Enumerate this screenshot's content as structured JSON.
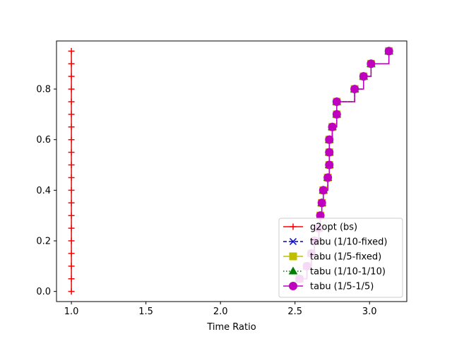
{
  "chart_data": {
    "type": "line",
    "title": "",
    "xlabel": "Time Ratio",
    "ylabel": "",
    "xlim": [
      0.9,
      3.25
    ],
    "ylim": [
      -0.04,
      0.99
    ],
    "xticks": [
      "1.0",
      "1.5",
      "2.0",
      "2.5",
      "3.0"
    ],
    "yticks": [
      "0.0",
      "0.2",
      "0.4",
      "0.6",
      "0.8"
    ],
    "grid": false,
    "legend_position": "lower-right",
    "step": true,
    "series": [
      {
        "name": "g2opt (bs)",
        "color": "#ff0000",
        "marker": "plus",
        "linestyle": "solid",
        "x": [
          1.0,
          1.0,
          1.0,
          1.0,
          1.0,
          1.0,
          1.0,
          1.0,
          1.0,
          1.0,
          1.0,
          1.0,
          1.0,
          1.0,
          1.0,
          1.0,
          1.0,
          1.0,
          1.0,
          1.0
        ],
        "y": [
          0.0,
          0.05,
          0.1,
          0.15,
          0.2,
          0.25,
          0.3,
          0.35,
          0.4,
          0.45,
          0.5,
          0.55,
          0.6,
          0.65,
          0.7,
          0.75,
          0.8,
          0.85,
          0.9,
          0.95
        ]
      },
      {
        "name": "tabu (1/10-fixed)",
        "color": "#0000cc",
        "marker": "x",
        "linestyle": "dashed",
        "x": [
          2.53,
          2.58,
          2.61,
          2.63,
          2.66,
          2.67,
          2.68,
          2.69,
          2.72,
          2.73,
          2.73,
          2.73,
          2.75,
          2.78,
          2.78,
          2.9,
          2.96,
          3.01,
          3.13
        ],
        "y": [
          0.05,
          0.1,
          0.15,
          0.2,
          0.25,
          0.3,
          0.35,
          0.4,
          0.45,
          0.5,
          0.55,
          0.6,
          0.65,
          0.7,
          0.75,
          0.8,
          0.85,
          0.9,
          0.95
        ]
      },
      {
        "name": "tabu (1/5-fixed)",
        "color": "#bfbf00",
        "marker": "square",
        "linestyle": "solid",
        "x": [
          2.53,
          2.58,
          2.61,
          2.63,
          2.66,
          2.67,
          2.68,
          2.69,
          2.72,
          2.73,
          2.73,
          2.73,
          2.75,
          2.78,
          2.78,
          2.9,
          2.96,
          3.01,
          3.13
        ],
        "y": [
          0.05,
          0.1,
          0.15,
          0.2,
          0.25,
          0.3,
          0.35,
          0.4,
          0.45,
          0.5,
          0.55,
          0.6,
          0.65,
          0.7,
          0.75,
          0.8,
          0.85,
          0.9,
          0.95
        ]
      },
      {
        "name": "tabu (1/10-1/10)",
        "color": "#008000",
        "marker": "triangle",
        "linestyle": "dotted",
        "x": [
          2.53,
          2.58,
          2.61,
          2.63,
          2.66,
          2.67,
          2.68,
          2.69,
          2.72,
          2.73,
          2.73,
          2.73,
          2.75,
          2.78,
          2.78,
          2.9,
          2.96,
          3.01,
          3.13
        ],
        "y": [
          0.05,
          0.1,
          0.15,
          0.2,
          0.25,
          0.3,
          0.35,
          0.4,
          0.45,
          0.5,
          0.55,
          0.6,
          0.65,
          0.7,
          0.75,
          0.8,
          0.85,
          0.9,
          0.95
        ]
      },
      {
        "name": "tabu (1/5-1/5)",
        "color": "#bf00bf",
        "marker": "circle",
        "linestyle": "solid",
        "x": [
          2.53,
          2.58,
          2.61,
          2.63,
          2.66,
          2.67,
          2.68,
          2.69,
          2.72,
          2.73,
          2.73,
          2.73,
          2.75,
          2.78,
          2.78,
          2.9,
          2.96,
          3.01,
          3.13
        ],
        "y": [
          0.05,
          0.1,
          0.15,
          0.2,
          0.25,
          0.3,
          0.35,
          0.4,
          0.45,
          0.5,
          0.55,
          0.6,
          0.65,
          0.7,
          0.75,
          0.8,
          0.85,
          0.9,
          0.95
        ]
      }
    ]
  }
}
